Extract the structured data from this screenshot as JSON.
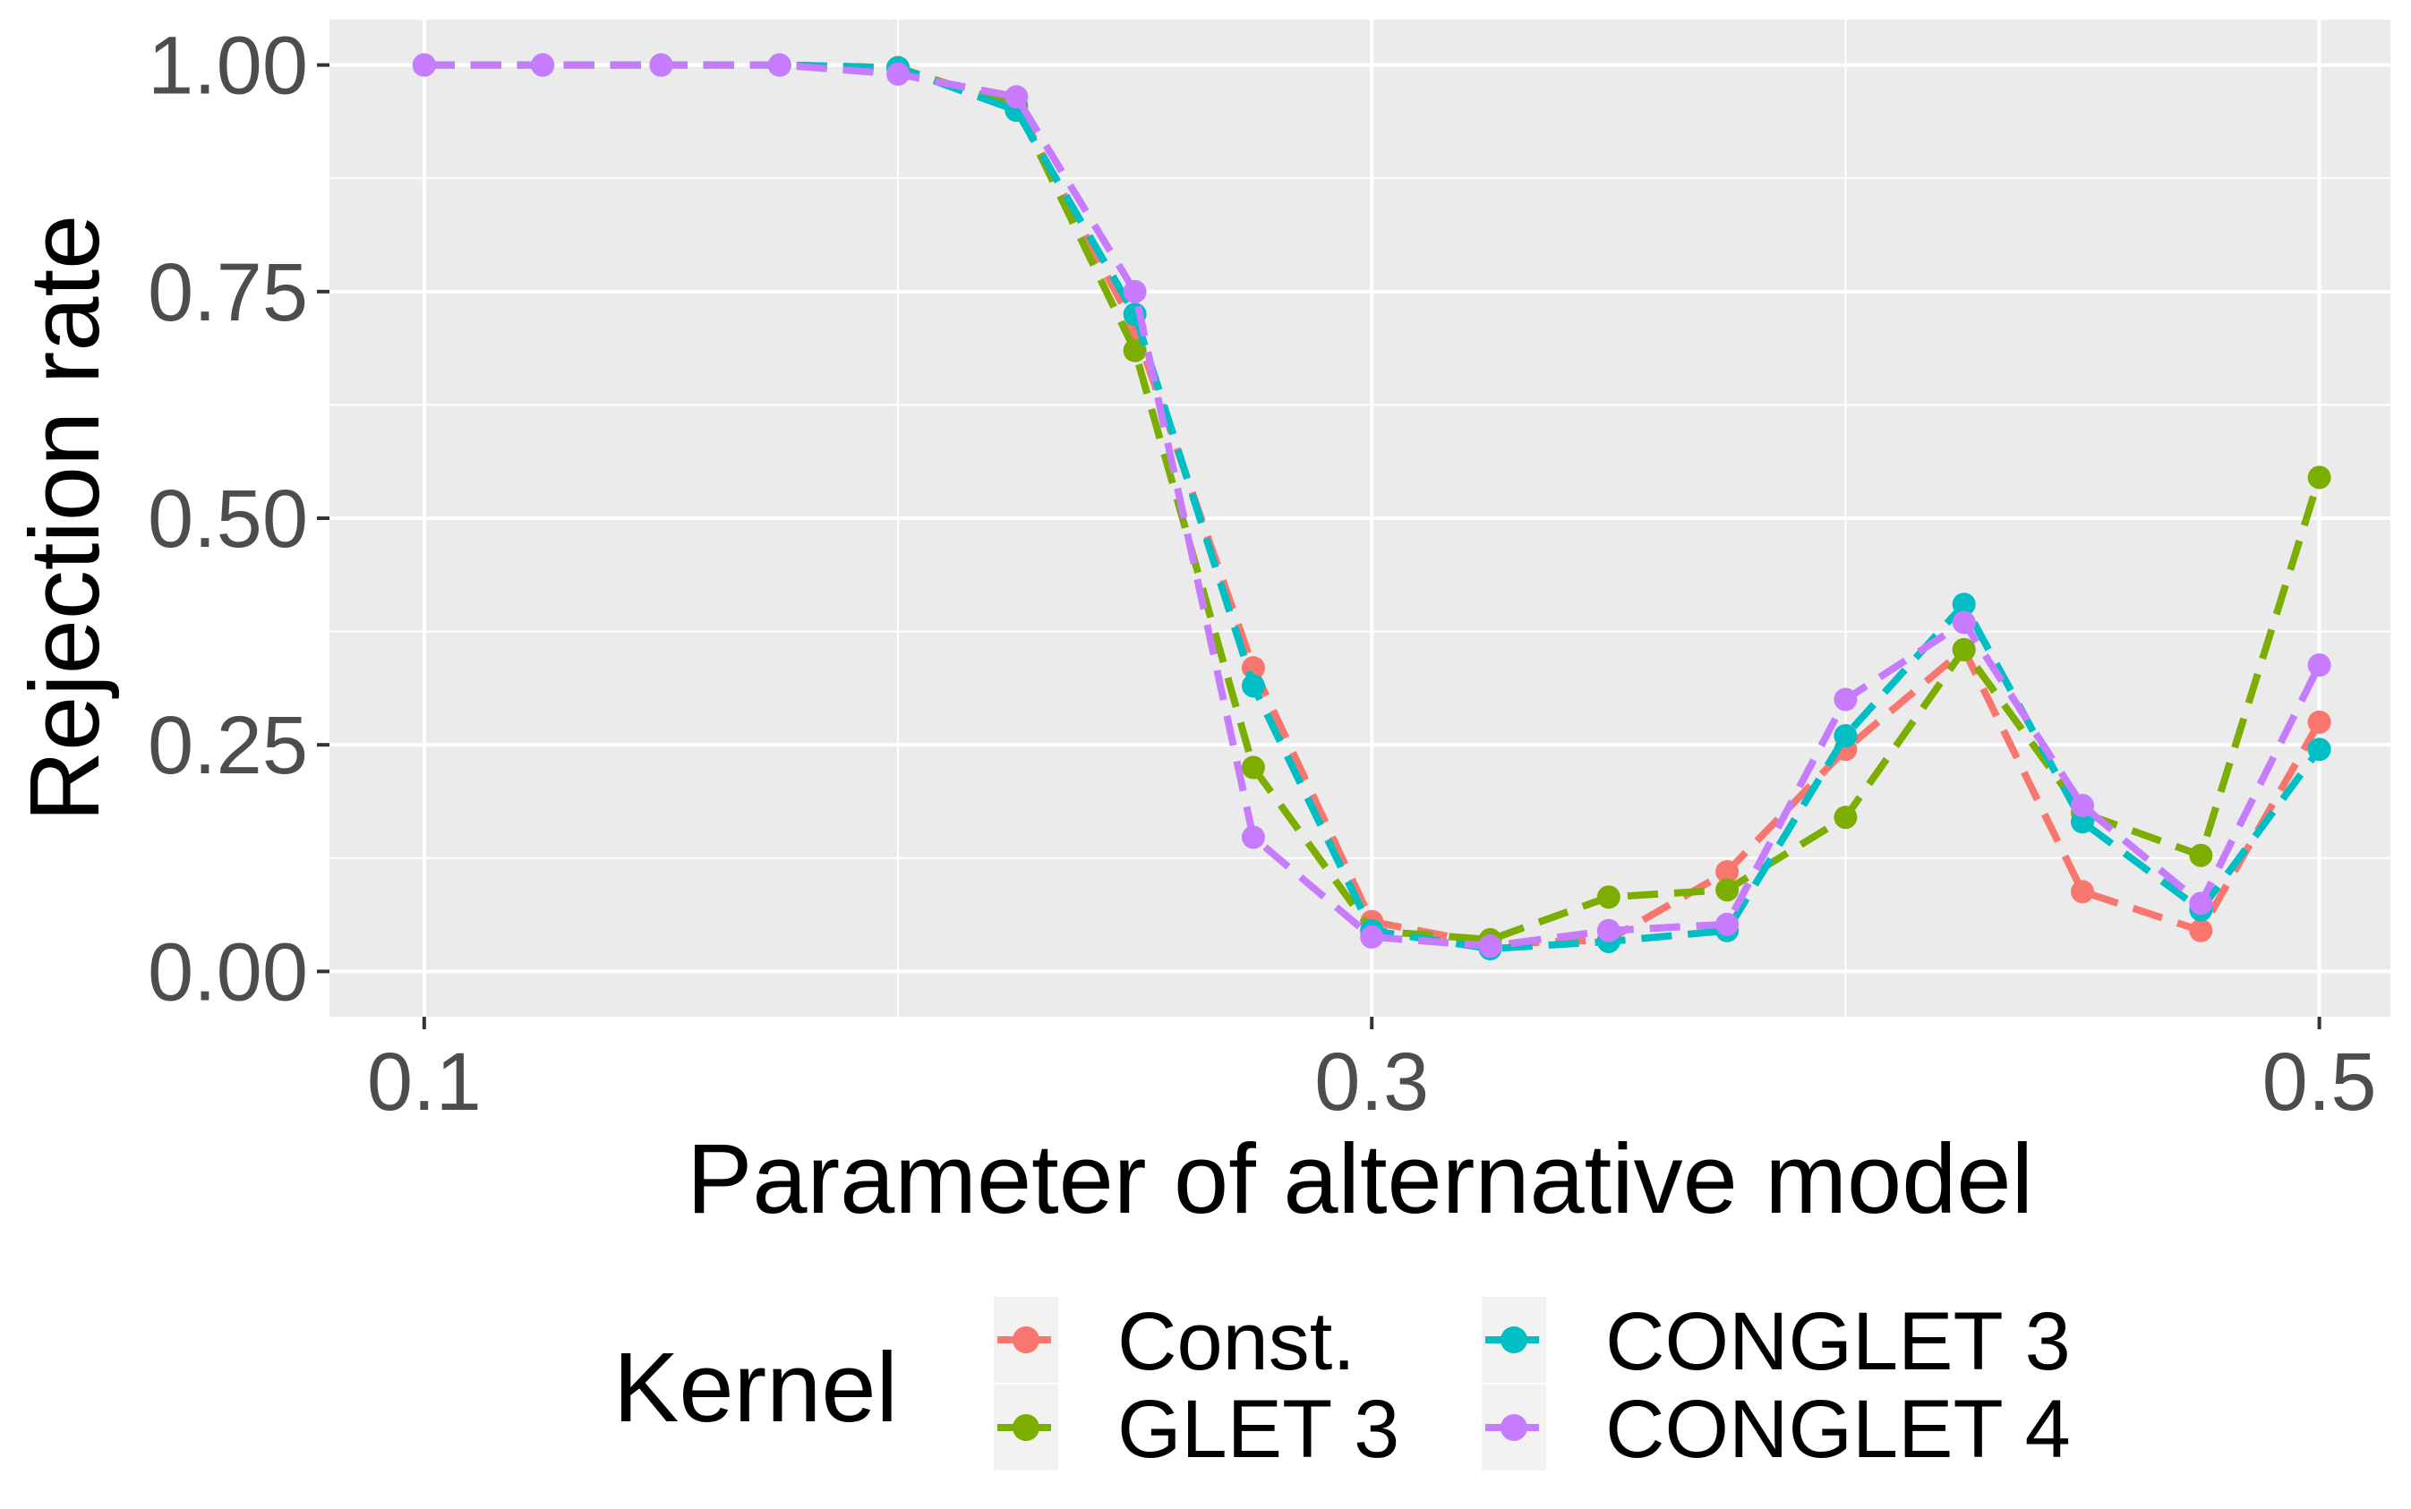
{
  "chart_data": {
    "type": "line",
    "xlabel": "Parameter of alternative model",
    "ylabel": "Rejection rate",
    "x": [
      0.1,
      0.125,
      0.15,
      0.175,
      0.2,
      0.225,
      0.25,
      0.275,
      0.3,
      0.325,
      0.35,
      0.375,
      0.4,
      0.425,
      0.45,
      0.475,
      0.5
    ],
    "xlim": [
      0.08,
      0.515
    ],
    "ylim": [
      -0.05,
      1.05
    ],
    "x_ticks": [
      0.1,
      0.3,
      0.5
    ],
    "x_tick_labels": [
      "0.1",
      "0.3",
      "0.5"
    ],
    "y_ticks": [
      0,
      0.25,
      0.5,
      0.75,
      1
    ],
    "y_tick_labels": [
      "0.00",
      "0.25",
      "0.50",
      "0.75",
      "1.00"
    ],
    "line_style": "dashed",
    "grid": true,
    "legend": {
      "title": "Kernel",
      "position": "bottom"
    },
    "series": [
      {
        "name": "Const.",
        "color": "#F8766D",
        "values": [
          1.0,
          1.0,
          1.0,
          1.0,
          0.997,
          0.955,
          0.71,
          0.335,
          0.055,
          0.03,
          0.035,
          0.11,
          0.245,
          0.355,
          0.088,
          0.045,
          0.275
        ]
      },
      {
        "name": "GLET 3",
        "color": "#7CAE00",
        "values": [
          1.0,
          1.0,
          1.0,
          1.0,
          0.997,
          0.955,
          0.685,
          0.225,
          0.045,
          0.035,
          0.082,
          0.09,
          0.17,
          0.355,
          0.175,
          0.128,
          0.545
        ]
      },
      {
        "name": "CONGLET 3",
        "color": "#00BFC4",
        "values": [
          1.0,
          1.0,
          1.0,
          1.0,
          0.997,
          0.95,
          0.725,
          0.315,
          0.045,
          0.025,
          0.033,
          0.045,
          0.26,
          0.405,
          0.165,
          0.068,
          0.245
        ]
      },
      {
        "name": "CONGLET 4",
        "color": "#C77CFF",
        "values": [
          1.0,
          1.0,
          1.0,
          1.0,
          0.99,
          0.965,
          0.75,
          0.148,
          0.038,
          0.028,
          0.045,
          0.052,
          0.3,
          0.385,
          0.183,
          0.075,
          0.338
        ]
      }
    ]
  }
}
